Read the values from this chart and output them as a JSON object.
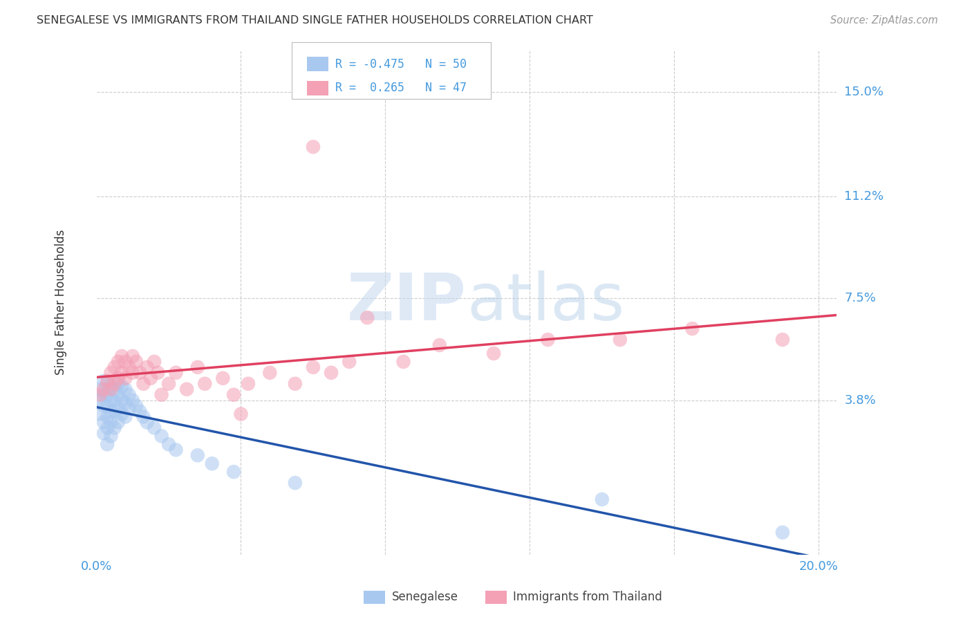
{
  "title": "SENEGALESE VS IMMIGRANTS FROM THAILAND SINGLE FATHER HOUSEHOLDS CORRELATION CHART",
  "source": "Source: ZipAtlas.com",
  "ylabel": "Single Father Households",
  "ytick_labels": [
    "15.0%",
    "11.2%",
    "7.5%",
    "3.8%"
  ],
  "ytick_values": [
    0.15,
    0.112,
    0.075,
    0.038
  ],
  "xlim": [
    0.0,
    0.205
  ],
  "ylim": [
    -0.018,
    0.165
  ],
  "color_blue": "#A8C8F0",
  "color_pink": "#F4A0B5",
  "line_color_blue": "#2255AA",
  "line_color_pink": "#E04060",
  "background_color": "#FFFFFF",
  "grid_color": "#CCCCCC",
  "title_color": "#333333",
  "axis_label_color": "#4499DD",
  "legend_blue_label": "Senegalese",
  "legend_pink_label": "Immigrants from Thailand",
  "blue_points_x": [
    0.001,
    0.001,
    0.001,
    0.002,
    0.002,
    0.002,
    0.002,
    0.002,
    0.003,
    0.003,
    0.003,
    0.003,
    0.003,
    0.003,
    0.004,
    0.004,
    0.004,
    0.004,
    0.004,
    0.005,
    0.005,
    0.005,
    0.005,
    0.006,
    0.006,
    0.006,
    0.006,
    0.007,
    0.007,
    0.007,
    0.008,
    0.008,
    0.008,
    0.009,
    0.009,
    0.01,
    0.011,
    0.012,
    0.013,
    0.014,
    0.016,
    0.018,
    0.02,
    0.022,
    0.028,
    0.032,
    0.038,
    0.055,
    0.14,
    0.19
  ],
  "blue_points_y": [
    0.042,
    0.038,
    0.033,
    0.045,
    0.04,
    0.036,
    0.03,
    0.026,
    0.044,
    0.04,
    0.036,
    0.032,
    0.028,
    0.022,
    0.043,
    0.038,
    0.034,
    0.03,
    0.025,
    0.042,
    0.038,
    0.034,
    0.028,
    0.044,
    0.04,
    0.035,
    0.03,
    0.043,
    0.038,
    0.033,
    0.042,
    0.037,
    0.032,
    0.04,
    0.035,
    0.038,
    0.036,
    0.034,
    0.032,
    0.03,
    0.028,
    0.025,
    0.022,
    0.02,
    0.018,
    0.015,
    0.012,
    0.008,
    0.002,
    -0.01
  ],
  "pink_points_x": [
    0.001,
    0.002,
    0.003,
    0.004,
    0.004,
    0.005,
    0.005,
    0.006,
    0.006,
    0.007,
    0.007,
    0.008,
    0.008,
    0.009,
    0.01,
    0.01,
    0.011,
    0.012,
    0.013,
    0.014,
    0.015,
    0.016,
    0.017,
    0.018,
    0.02,
    0.022,
    0.025,
    0.028,
    0.03,
    0.035,
    0.038,
    0.042,
    0.048,
    0.055,
    0.06,
    0.065,
    0.07,
    0.075,
    0.085,
    0.095,
    0.11,
    0.125,
    0.145,
    0.165,
    0.19,
    0.06,
    0.04
  ],
  "pink_points_y": [
    0.04,
    0.042,
    0.045,
    0.048,
    0.042,
    0.05,
    0.044,
    0.052,
    0.046,
    0.054,
    0.048,
    0.052,
    0.046,
    0.05,
    0.054,
    0.048,
    0.052,
    0.048,
    0.044,
    0.05,
    0.046,
    0.052,
    0.048,
    0.04,
    0.044,
    0.048,
    0.042,
    0.05,
    0.044,
    0.046,
    0.04,
    0.044,
    0.048,
    0.044,
    0.05,
    0.048,
    0.052,
    0.068,
    0.052,
    0.058,
    0.055,
    0.06,
    0.06,
    0.064,
    0.06,
    0.13,
    0.033
  ]
}
